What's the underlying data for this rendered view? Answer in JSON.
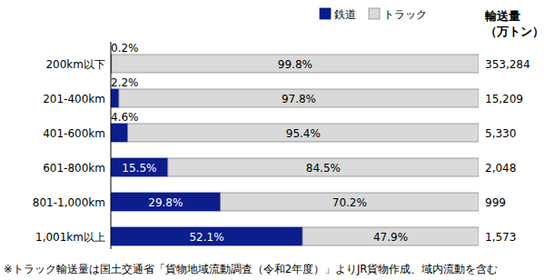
{
  "chart_data": {
    "type": "bar",
    "orientation": "horizontal",
    "stacked": true,
    "data_labels": true,
    "tick_labels": "y",
    "legend": "top-right",
    "categories": [
      "200km以下",
      "201-400km",
      "401-600km",
      "601-800km",
      "801-1,000km",
      "1,001km以上"
    ],
    "xlim": [
      0,
      100
    ],
    "series": [
      {
        "name": "鉄道",
        "color": "#0c1d8c",
        "values": [
          0.2,
          2.2,
          4.6,
          15.5,
          29.8,
          52.1
        ],
        "value_labels": [
          "0.2%",
          "2.2%",
          "4.6%",
          "15.5%",
          "29.8%",
          "52.1%"
        ]
      },
      {
        "name": "トラック",
        "color": "#d9d9d9",
        "values": [
          99.8,
          97.8,
          95.4,
          84.5,
          70.2,
          47.9
        ],
        "value_labels": [
          "99.8%",
          "97.8%",
          "95.4%",
          "84.5%",
          "70.2%",
          "47.9%"
        ]
      }
    ],
    "volume_header": [
      "輸送量",
      "（万トン）"
    ],
    "volumes": [
      353284,
      15209,
      5330,
      2048,
      999,
      1573
    ],
    "note": "※トラック輸送量は国土交通省「貨物地域流動調査（令和2年度）」よりJR貨物作成、域内流動を含む"
  }
}
